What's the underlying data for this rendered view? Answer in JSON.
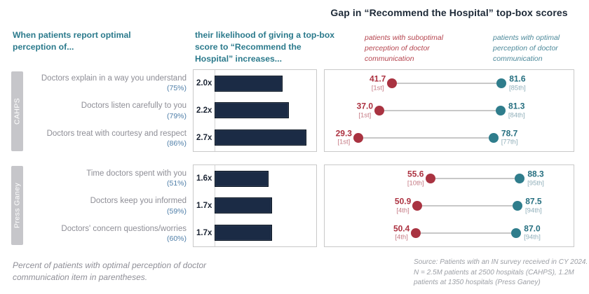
{
  "page": {
    "title": "Gap in “Recommend the Hospital” top-box scores",
    "left_header": "When patients report optimal perception of...",
    "bar_header": "their likelihood of giving a top-box score to “Recommend the Hospital” increases...",
    "legend_suboptimal": "patients with suboptimal perception of doctor communication",
    "legend_optimal": "patients with optimal perception of doctor communication",
    "footnote": "Percent of patients with optimal perception of doctor communication item in parentheses.",
    "source": "Source: Patients with an IN survey received in CY 2024. N = 2.5M patients at 2500 hospitals (CAHPS), 1.2M patients at 1350 hospitals (Press Ganey)"
  },
  "colors": {
    "teal_header": "#2b7a8c",
    "navy_title": "#1d2937",
    "bar_fill": "#1b2b45",
    "bar_border": "#0a1522",
    "red_dot": "#a93341",
    "red_value": "#ac3140",
    "red_percentile": "#c57983",
    "teal_dot": "#2f7d8c",
    "teal_value": "#266f80",
    "teal_percentile": "#8faeb9",
    "category_gray": "#8e8e96",
    "pct_blue": "#4e7ea8",
    "tab_gray": "#c6c6ca",
    "box_border": "#c9c9c9",
    "connector_gray": "#c8c8c8"
  },
  "chart_data": [
    {
      "type": "bar",
      "group": "CAHPS",
      "categories": [
        "Doctors explain in a way you understand",
        "Doctors listen carefully to you",
        "Doctors treat with courtesy and respect"
      ],
      "category_pcts": [
        "(75%)",
        "(79%)",
        "(86%)"
      ],
      "values": [
        2.0,
        2.2,
        2.7
      ],
      "value_labels": [
        "2.0x",
        "2.2x",
        "2.7x"
      ],
      "bar_xlim": [
        0,
        3
      ],
      "gap": {
        "type": "scatter",
        "xlim": [
          17,
          108
        ],
        "series": [
          {
            "name": "suboptimal",
            "points": [
              {
                "value": 41.7,
                "percentile": "[1st]"
              },
              {
                "value": 37.0,
                "percentile": "[1st]"
              },
              {
                "value": 29.3,
                "percentile": "[1st]"
              }
            ]
          },
          {
            "name": "optimal",
            "points": [
              {
                "value": 81.6,
                "percentile": "[85th]"
              },
              {
                "value": 81.3,
                "percentile": "[84th]"
              },
              {
                "value": 78.7,
                "percentile": "[77th]"
              }
            ]
          }
        ]
      }
    },
    {
      "type": "bar",
      "group": "Press Ganey",
      "categories": [
        "Time doctors spent with you",
        "Doctors keep you informed",
        "Doctors' concern questions/worries"
      ],
      "category_pcts": [
        "(51%)",
        "(59%)",
        "(60%)"
      ],
      "values": [
        1.6,
        1.7,
        1.7
      ],
      "value_labels": [
        "1.6x",
        "1.7x",
        "1.7x"
      ],
      "bar_xlim": [
        0,
        3
      ],
      "gap": {
        "type": "scatter",
        "xlim": [
          17,
          108
        ],
        "series": [
          {
            "name": "suboptimal",
            "points": [
              {
                "value": 55.6,
                "percentile": "[10th]"
              },
              {
                "value": 50.9,
                "percentile": "[4th]"
              },
              {
                "value": 50.4,
                "percentile": "[4th]"
              }
            ]
          },
          {
            "name": "optimal",
            "points": [
              {
                "value": 88.3,
                "percentile": "[95th]"
              },
              {
                "value": 87.5,
                "percentile": "[94th]"
              },
              {
                "value": 87.0,
                "percentile": "[94th]"
              }
            ]
          }
        ]
      }
    }
  ]
}
